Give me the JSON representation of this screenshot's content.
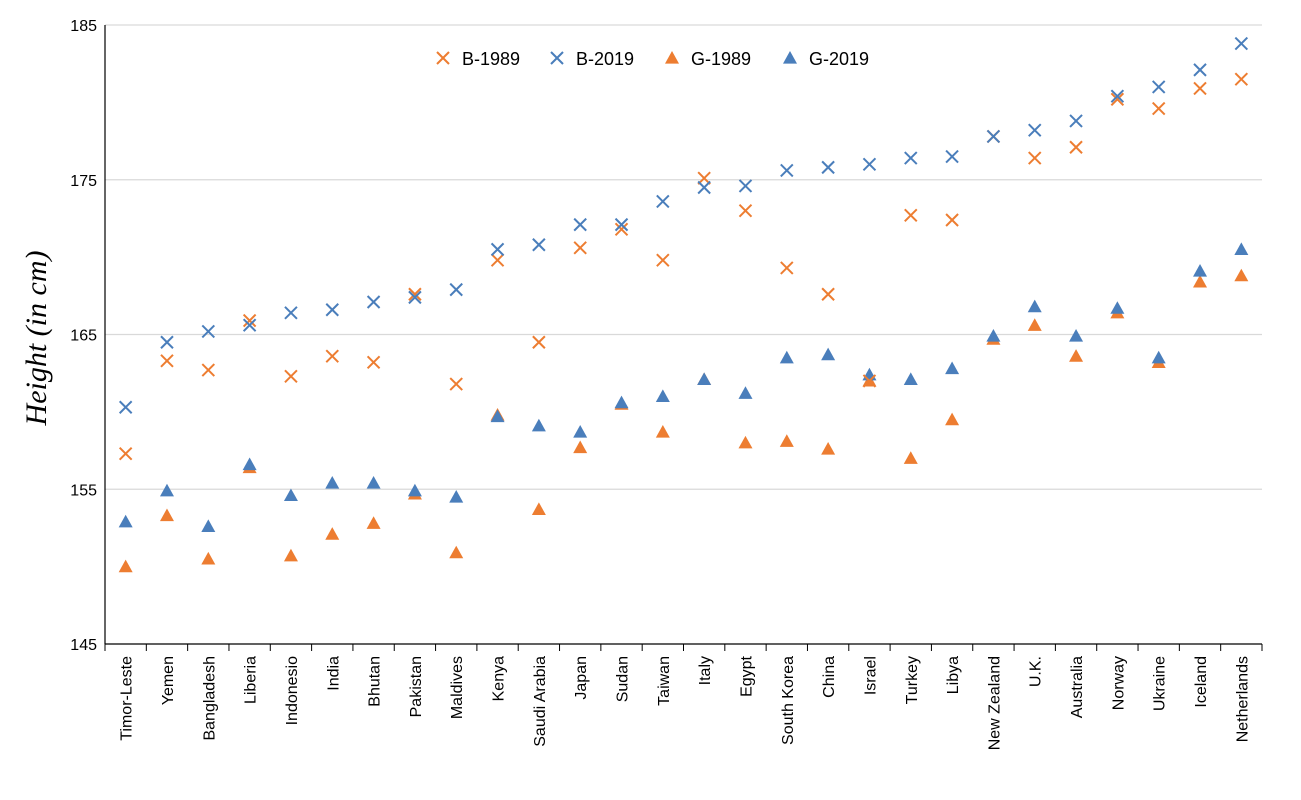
{
  "chart_data": {
    "type": "scatter",
    "title": "",
    "xlabel": "",
    "ylabel": "Height (in cm)",
    "ylim": [
      145,
      185
    ],
    "yticks": [
      145,
      155,
      165,
      175,
      185
    ],
    "grid": true,
    "legend_position": "top-center",
    "categories": [
      "Timor-Leste",
      "Yemen",
      "Bangladesh",
      "Liberia",
      "Indonesio",
      "India",
      "Bhutan",
      "Pakistan",
      "Maldives",
      "Kenya",
      "Saudi Arabia",
      "Japan",
      "Sudan",
      "Taiwan",
      "Italy",
      "Egypt",
      "South Korea",
      "China",
      "Israel",
      "Turkey",
      "Libya",
      "New Zealand",
      "U.K.",
      "Australia",
      "Norway",
      "Ukraine",
      "Iceland",
      "Netherlands"
    ],
    "series": [
      {
        "name": "B-1989",
        "marker": "x",
        "color": "#ED7D31",
        "values": [
          157.3,
          163.3,
          162.7,
          165.9,
          162.3,
          163.6,
          163.2,
          167.6,
          161.8,
          169.8,
          164.5,
          170.6,
          171.8,
          169.8,
          175.1,
          173.0,
          169.3,
          167.6,
          162.0,
          172.7,
          172.4,
          177.8,
          176.4,
          177.1,
          180.2,
          179.6,
          180.9,
          181.5
        ]
      },
      {
        "name": "B-2019",
        "marker": "x",
        "color": "#4A7EBB",
        "values": [
          160.3,
          164.5,
          165.2,
          165.6,
          166.4,
          166.6,
          167.1,
          167.4,
          167.9,
          170.5,
          170.8,
          172.1,
          172.1,
          173.6,
          174.5,
          174.6,
          175.6,
          175.8,
          176.0,
          176.4,
          176.5,
          177.8,
          178.2,
          178.8,
          180.4,
          181.0,
          182.1,
          183.8
        ]
      },
      {
        "name": "G-1989",
        "marker": "triangle",
        "color": "#ED7D31",
        "values": [
          150.0,
          153.3,
          150.5,
          156.4,
          150.7,
          152.1,
          152.8,
          154.7,
          150.9,
          159.8,
          153.7,
          157.7,
          160.5,
          158.7,
          162.1,
          158.0,
          158.1,
          157.6,
          162.0,
          157.0,
          159.5,
          164.7,
          165.6,
          163.6,
          166.4,
          163.2,
          168.4,
          168.8
        ]
      },
      {
        "name": "G-2019",
        "marker": "triangle",
        "color": "#4A7EBB",
        "values": [
          152.9,
          154.9,
          152.6,
          156.6,
          154.6,
          155.4,
          155.4,
          154.9,
          154.5,
          159.7,
          159.1,
          158.7,
          160.6,
          161.0,
          162.1,
          161.2,
          163.5,
          163.7,
          162.4,
          162.1,
          162.8,
          164.9,
          166.8,
          164.9,
          166.7,
          163.5,
          169.1,
          170.5
        ]
      }
    ]
  }
}
